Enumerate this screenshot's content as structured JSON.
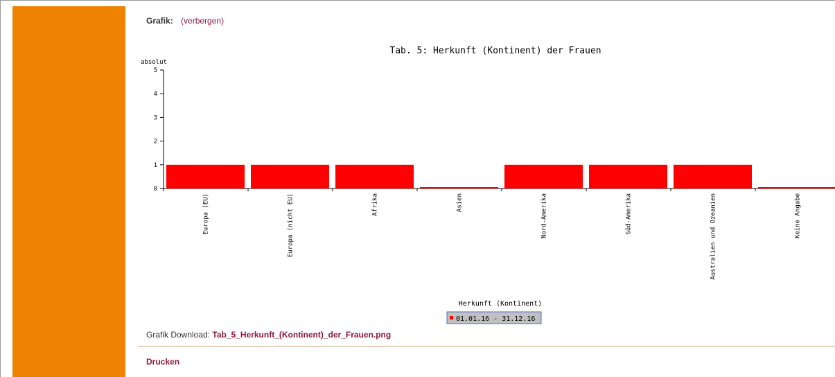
{
  "graph_section": {
    "label": "Grafik:",
    "toggle_link": "(verbergen)"
  },
  "chart_data": {
    "type": "bar",
    "title": "Tab. 5: Herkunft (Kontinent) der Frauen",
    "ylabel": "absolut",
    "xlabel": "Herkunft (Kontinent)",
    "ylim": [
      0,
      5
    ],
    "yticks": [
      "0",
      "1",
      "2",
      "3",
      "4",
      "5"
    ],
    "categories": [
      "Europa (EU)",
      "Europa (nicht EU)",
      "Afrika",
      "Asien",
      "Nord-Amerika",
      "Süd-Amerika",
      "Australien und Ozeanien",
      "Keine Angabe"
    ],
    "series": [
      {
        "name": "01.01.16 - 31.12.16",
        "values": [
          1,
          1,
          1,
          0,
          1,
          1,
          1,
          0
        ]
      }
    ],
    "grid": false,
    "legend_position": "bottom-center",
    "bar_color": "#ff0000"
  },
  "download": {
    "label": "Grafik Download:",
    "filename": "Tab_5_Herkunft_(Kontinent)_der_Frauen.png"
  },
  "print_link": "Drucken",
  "colors": {
    "sidebar": "#ef8200",
    "link": "#8b1a3a",
    "legend_bg": "#c0c0c0",
    "legend_border": "#4a6fd0"
  }
}
